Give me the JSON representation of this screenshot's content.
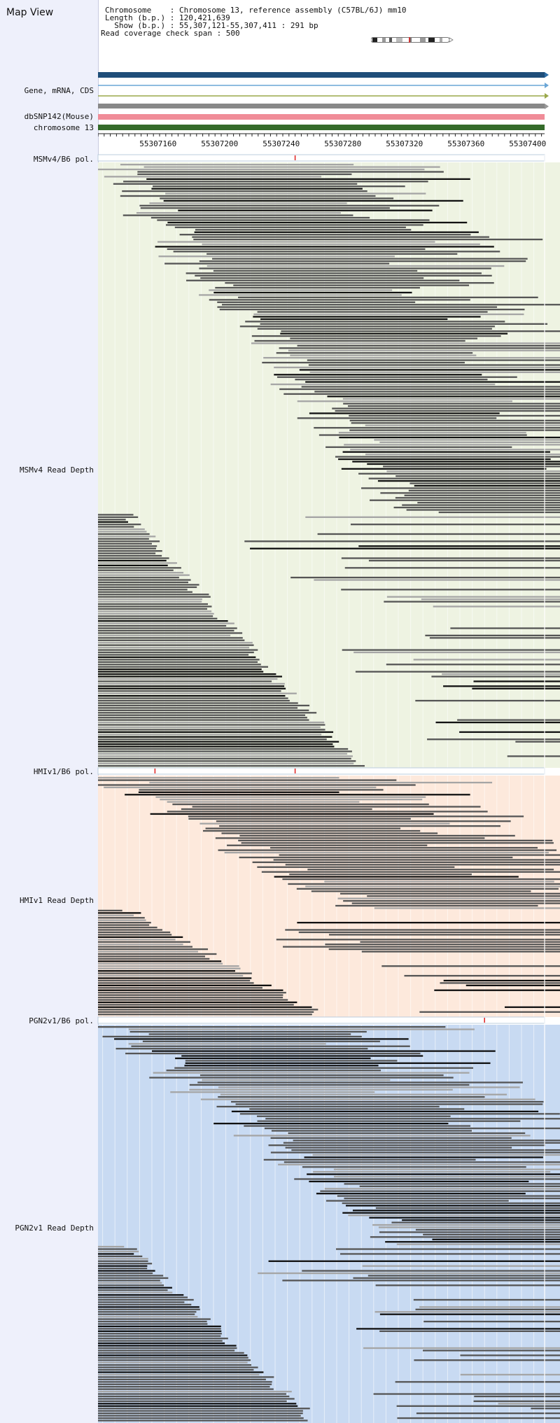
{
  "app": {
    "title": "Map View"
  },
  "info": {
    "chromosome_line": "Chromosome    : Chromosome 13, reference assembly (C57BL/6J) mm10",
    "length_line": "Length (b.p.) : 120,421,639",
    "show_line": "  Show (b.p.) : 55,307,121-55,307,411 : 291 bp",
    "span_line": "Read coverage check span : 500"
  },
  "labels": {
    "gene": "Gene, mRNA, CDS",
    "dbsnp": "dbSNP142(Mouse)",
    "chromosome": "chromosome 13",
    "msm_pol": "MSMv4/B6 pol.",
    "msm_depth": "MSMv4 Read Depth",
    "hmi_pol": "HMIv1/B6 pol.",
    "hmi_depth": "HMIv1 Read Depth",
    "pgn_pol": "PGN2v1/B6 pol.",
    "pgn_depth": "PGN2v1 Read Depth"
  },
  "ruler": {
    "ticks": [
      "55307160",
      "55307200",
      "55307240",
      "55307280",
      "55307320",
      "55307360",
      "55307400"
    ],
    "tick_positions": [
      55307160,
      55307200,
      55307240,
      55307280,
      55307320,
      55307360,
      55307400
    ]
  },
  "colors": {
    "sidebar_bg": "#eef0fb",
    "gene_bar": "#1f4e79",
    "mrna_line": "#6aa6d6",
    "cds_line": "#9aa84a",
    "gray_bar": "#888888",
    "dbsnp_bar": "#f08c98",
    "chromosome_bar": "#356b2a",
    "msm_bg": "#eef3e2",
    "hmi_bg": "#fde9dc",
    "pgn_bg": "#c8daf2",
    "snp_mark": "#e02020",
    "read_dark": "#111111",
    "read_mid": "#555555",
    "read_light": "#a5a5a5"
  },
  "polymorphisms": {
    "msm": [
      55307249
    ],
    "hmi": [
      55307158,
      55307249
    ],
    "pgn": [
      55307372
    ]
  },
  "icons": {
    "arrow": "arrow-right-icon",
    "ideogram": "chromosome-ideogram-icon"
  }
}
